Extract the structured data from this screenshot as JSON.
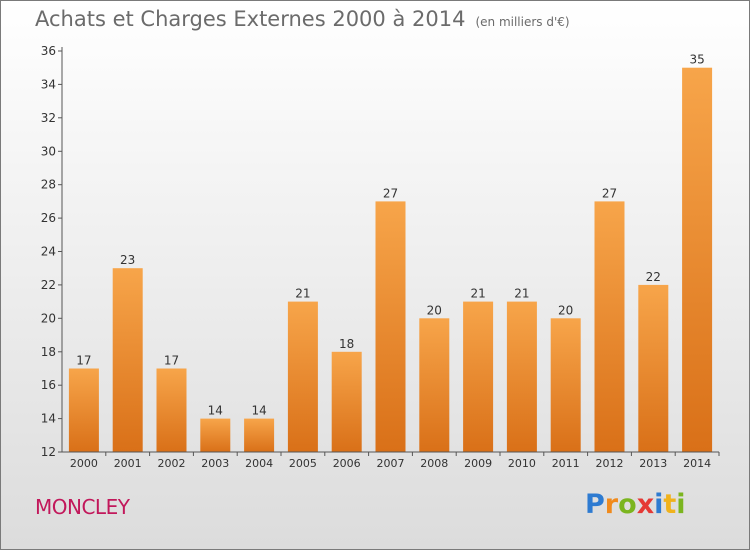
{
  "header": {
    "title": "Achats et Charges Externes 2000 à 2014",
    "subtitle": "(en milliers d'€)"
  },
  "footer": {
    "commune": "MONCLEY",
    "logo": {
      "p": "P",
      "r": "r",
      "o": "o",
      "x": "x",
      "i": "i",
      "t": "t",
      "i2": "i"
    }
  },
  "colors": {
    "bar_light": "#f7a54a",
    "bar_dark": "#d97018",
    "axis": "#555555",
    "text": "#333333",
    "title": "#6b6b6b",
    "commune": "#c2185b"
  },
  "chart_data": {
    "type": "bar",
    "title": "Achats et Charges Externes 2000 à 2014",
    "subtitle": "(en milliers d'€)",
    "categories": [
      "2000",
      "2001",
      "2002",
      "2003",
      "2004",
      "2005",
      "2006",
      "2007",
      "2008",
      "2009",
      "2010",
      "2011",
      "2012",
      "2013",
      "2014"
    ],
    "values": [
      17,
      23,
      17,
      14,
      14,
      21,
      18,
      27,
      20,
      21,
      21,
      20,
      27,
      22,
      35
    ],
    "ylim": [
      12,
      36
    ],
    "yticks": [
      12,
      14,
      16,
      18,
      20,
      22,
      24,
      26,
      28,
      30,
      32,
      34,
      36
    ],
    "xlabel": "",
    "ylabel": "",
    "grid": false,
    "data_labels": true
  }
}
